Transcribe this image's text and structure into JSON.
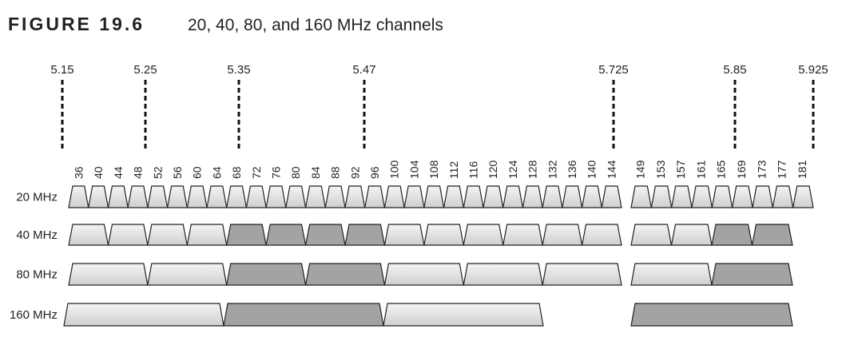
{
  "figure": {
    "label": "FIGURE 19.6",
    "title": "20, 40, 80, and 160 MHz channels"
  },
  "frequencies": [
    "5.15",
    "5.25",
    "5.35",
    "5.47",
    "5.725",
    "5.85",
    "5.925"
  ],
  "channels": [
    "36",
    "40",
    "44",
    "48",
    "52",
    "56",
    "60",
    "64",
    "68",
    "72",
    "76",
    "80",
    "84",
    "88",
    "92",
    "96",
    "100",
    "104",
    "108",
    "112",
    "116",
    "120",
    "124",
    "128",
    "132",
    "136",
    "140",
    "144",
    "149",
    "153",
    "157",
    "161",
    "165",
    "169",
    "173",
    "177",
    "181"
  ],
  "rows": [
    {
      "label": "20 MHz"
    },
    {
      "label": "40 MHz"
    },
    {
      "label": "80 MHz"
    },
    {
      "label": "160 MHz"
    }
  ]
}
